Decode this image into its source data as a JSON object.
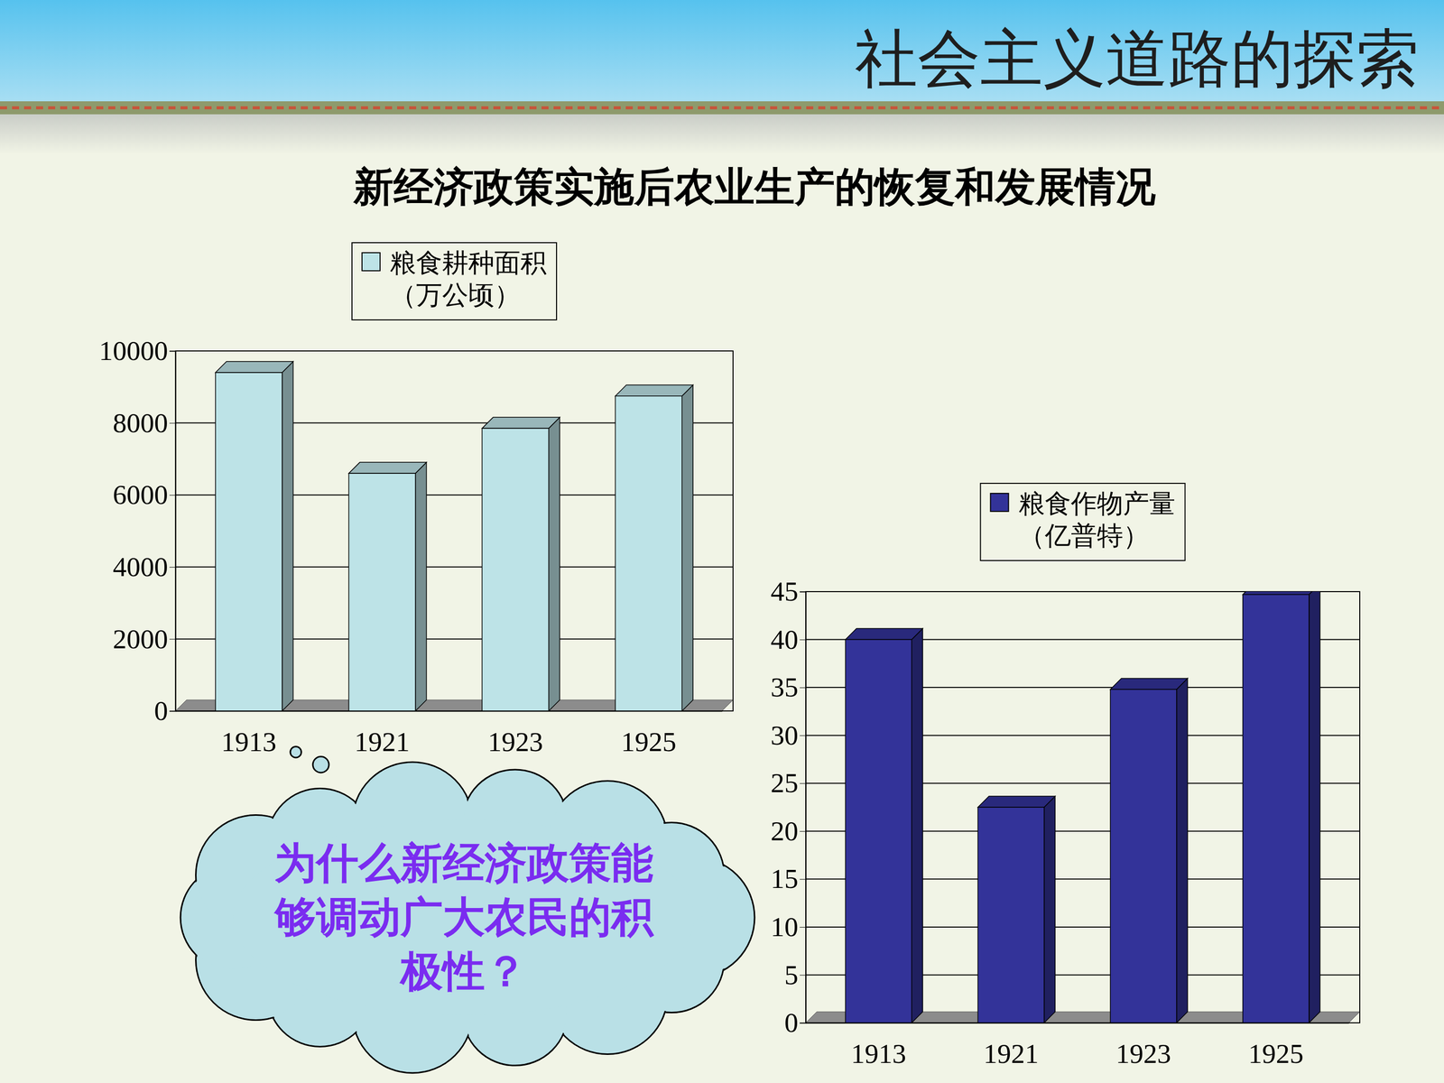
{
  "slide": {
    "header": "社会主义道路的探索",
    "title": "新经济政策实施后农业生产的恢复和发展情况",
    "annotation": "为什么新经济政策能够调动广大农民的积极性？"
  },
  "chart_data": [
    {
      "type": "bar",
      "categories": [
        "1913",
        "1921",
        "1923",
        "1925"
      ],
      "series": [
        {
          "name": "粮食耕种面积（万公顷）",
          "color": "#bde3e7",
          "values": [
            9400,
            6600,
            7850,
            8750
          ]
        }
      ],
      "ylim": [
        0,
        10000
      ],
      "yticks": [
        0,
        2000,
        4000,
        6000,
        8000,
        10000
      ],
      "grid": true,
      "legend": "top"
    },
    {
      "type": "bar",
      "categories": [
        "1913",
        "1921",
        "1923",
        "1925"
      ],
      "series": [
        {
          "name": "粮食作物产量（亿普特）",
          "color": "#333399",
          "values": [
            40,
            22.5,
            34.8,
            44.7
          ]
        }
      ],
      "ylim": [
        0,
        45
      ],
      "yticks": [
        0,
        5,
        10,
        15,
        20,
        25,
        30,
        35,
        40,
        45
      ],
      "grid": true,
      "legend": "top"
    }
  ]
}
